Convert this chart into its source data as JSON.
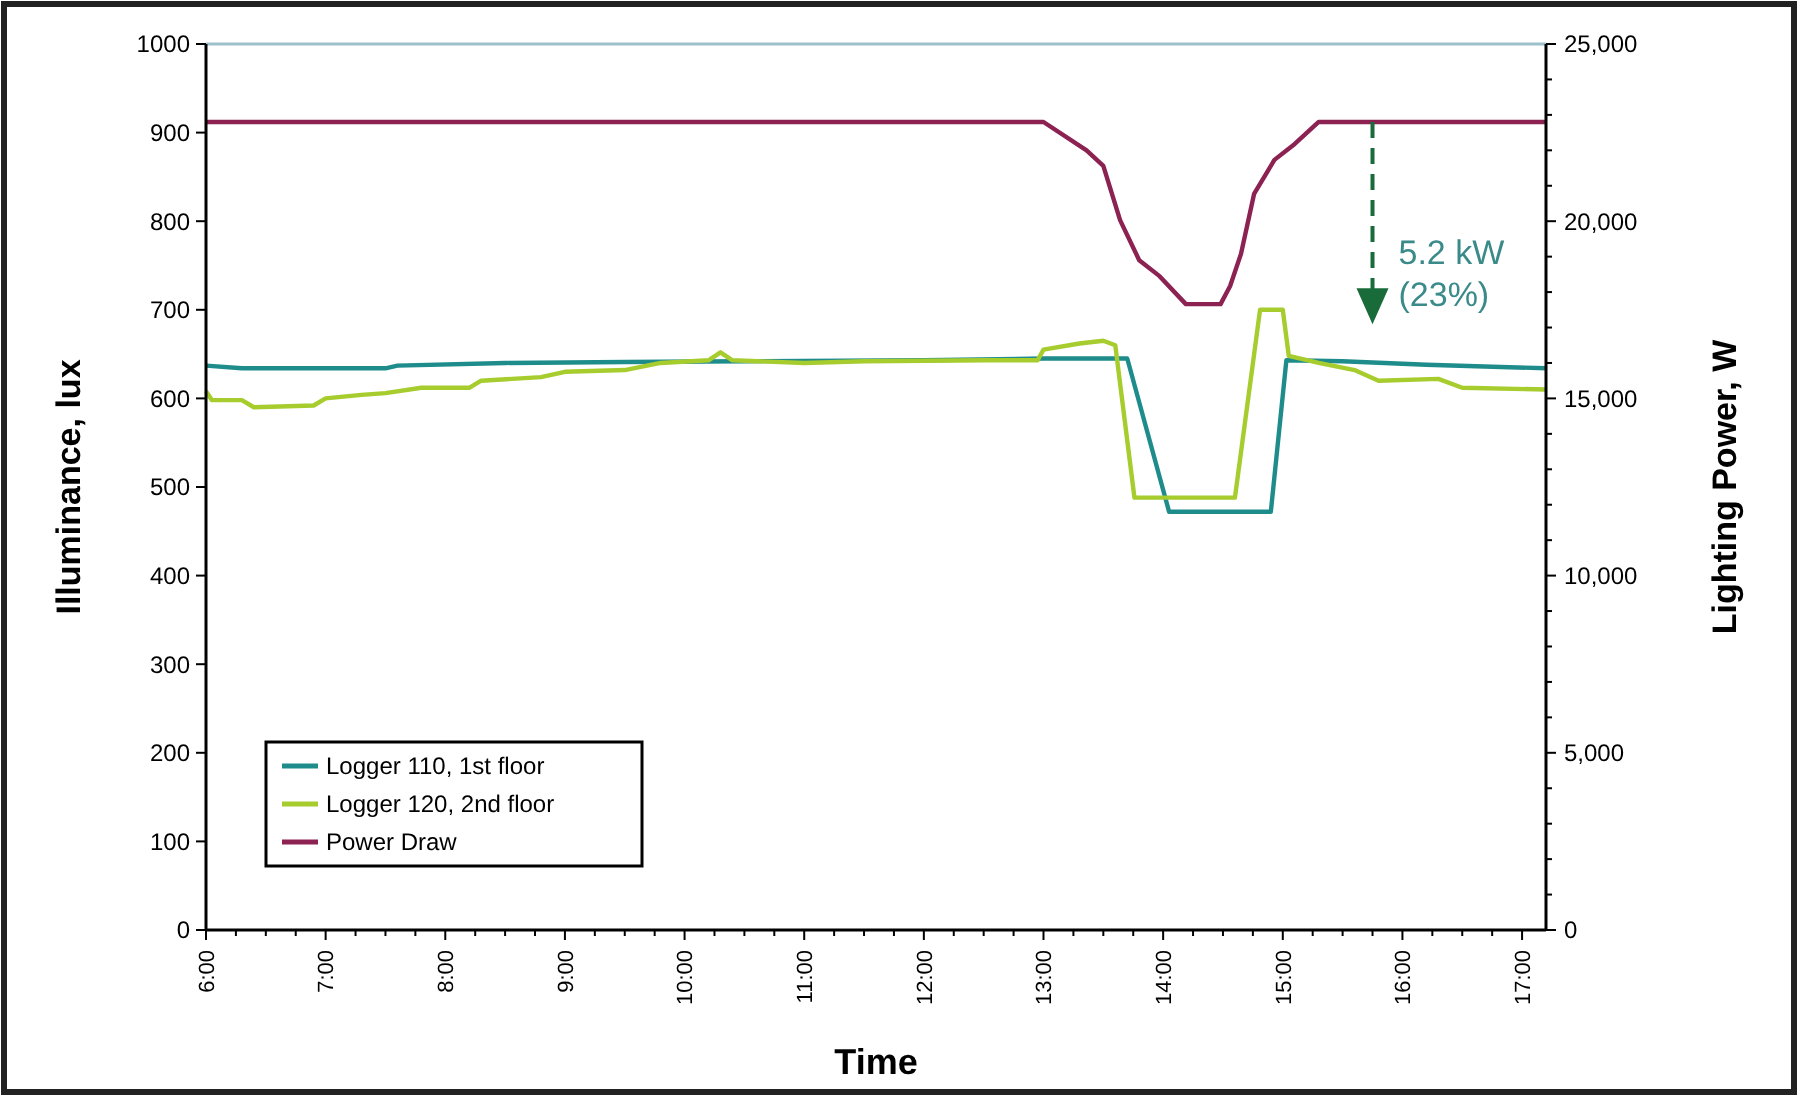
{
  "chart_data": {
    "type": "line",
    "xlabel": "Time",
    "ylabel": "Illuminance, lux",
    "y2label": "Lighting Power, W",
    "xlim": [
      6,
      17.2
    ],
    "xticks": [
      {
        "value": 6,
        "label": "6:00"
      },
      {
        "value": 6.25,
        "label": null
      },
      {
        "value": 6.5,
        "label": null
      },
      {
        "value": 6.75,
        "label": null
      },
      {
        "value": 7,
        "label": "7:00"
      },
      {
        "value": 7.25,
        "label": null
      },
      {
        "value": 7.5,
        "label": null
      },
      {
        "value": 7.75,
        "label": null
      },
      {
        "value": 8,
        "label": "8:00"
      },
      {
        "value": 8.25,
        "label": null
      },
      {
        "value": 8.5,
        "label": null
      },
      {
        "value": 8.75,
        "label": null
      },
      {
        "value": 9,
        "label": "9:00"
      },
      {
        "value": 9.25,
        "label": null
      },
      {
        "value": 9.5,
        "label": null
      },
      {
        "value": 9.75,
        "label": null
      },
      {
        "value": 10,
        "label": "10:00"
      },
      {
        "value": 10.25,
        "label": null
      },
      {
        "value": 10.5,
        "label": null
      },
      {
        "value": 10.75,
        "label": null
      },
      {
        "value": 11,
        "label": "11:00"
      },
      {
        "value": 11.25,
        "label": null
      },
      {
        "value": 11.5,
        "label": null
      },
      {
        "value": 11.75,
        "label": null
      },
      {
        "value": 12,
        "label": "12:00"
      },
      {
        "value": 12.25,
        "label": null
      },
      {
        "value": 12.5,
        "label": null
      },
      {
        "value": 12.75,
        "label": null
      },
      {
        "value": 13,
        "label": "13:00"
      },
      {
        "value": 13.25,
        "label": null
      },
      {
        "value": 13.5,
        "label": null
      },
      {
        "value": 13.75,
        "label": null
      },
      {
        "value": 14,
        "label": "14:00"
      },
      {
        "value": 14.25,
        "label": null
      },
      {
        "value": 14.5,
        "label": null
      },
      {
        "value": 14.75,
        "label": null
      },
      {
        "value": 15,
        "label": "15:00"
      },
      {
        "value": 15.25,
        "label": null
      },
      {
        "value": 15.5,
        "label": null
      },
      {
        "value": 15.75,
        "label": null
      },
      {
        "value": 16,
        "label": "16:00"
      },
      {
        "value": 16.25,
        "label": null
      },
      {
        "value": 16.5,
        "label": null
      },
      {
        "value": 16.75,
        "label": null
      },
      {
        "value": 17,
        "label": "17:00"
      }
    ],
    "ylim": [
      0,
      1000
    ],
    "yticks": [
      0,
      100,
      200,
      300,
      400,
      500,
      600,
      700,
      800,
      900,
      1000
    ],
    "y2lim": [
      0,
      25000
    ],
    "y2ticks": [
      {
        "value": 0,
        "label": "0"
      },
      {
        "value": 1000,
        "label": null
      },
      {
        "value": 2000,
        "label": null
      },
      {
        "value": 3000,
        "label": null
      },
      {
        "value": 4000,
        "label": null
      },
      {
        "value": 5000,
        "label": "5,000"
      },
      {
        "value": 6000,
        "label": null
      },
      {
        "value": 7000,
        "label": null
      },
      {
        "value": 8000,
        "label": null
      },
      {
        "value": 9000,
        "label": null
      },
      {
        "value": 10000,
        "label": "10,000"
      },
      {
        "value": 11000,
        "label": null
      },
      {
        "value": 12000,
        "label": null
      },
      {
        "value": 13000,
        "label": null
      },
      {
        "value": 14000,
        "label": null
      },
      {
        "value": 15000,
        "label": "15,000"
      },
      {
        "value": 16000,
        "label": null
      },
      {
        "value": 17000,
        "label": null
      },
      {
        "value": 18000,
        "label": null
      },
      {
        "value": 19000,
        "label": null
      },
      {
        "value": 20000,
        "label": "20,000"
      },
      {
        "value": 21000,
        "label": null
      },
      {
        "value": 22000,
        "label": null
      },
      {
        "value": 23000,
        "label": null
      },
      {
        "value": 24000,
        "label": null
      },
      {
        "value": 25000,
        "label": "25,000"
      }
    ],
    "legend": "bottom left",
    "grid": false,
    "marker": "none",
    "line_style": "solid",
    "annotations": [
      {
        "text": "5.2 kW",
        "x": 15.75,
        "y": 912
      },
      "(23%)"
    ],
    "series": [
      {
        "name": "Logger 110, 1st floor",
        "color": "#1f8c8c",
        "x": [
          6,
          6.3,
          7.5,
          7.6,
          8.5,
          9.5,
          10.5,
          12,
          13,
          13.7,
          14.05,
          14.9,
          15.03,
          15.5,
          16.2,
          17.2
        ],
        "values": [
          637,
          634,
          634,
          637,
          640,
          641,
          642,
          643,
          645,
          645,
          472,
          472,
          643,
          642,
          638,
          634
        ]
      },
      {
        "name": "Logger 120, 2nd floor",
        "color": "#a6cc2e",
        "x": [
          6,
          6.05,
          6.3,
          6.4,
          6.9,
          7.0,
          7.3,
          7.5,
          7.8,
          8.2,
          8.3,
          8.8,
          9.0,
          9.5,
          9.8,
          10.2,
          10.3,
          10.4,
          11,
          11.5,
          12.5,
          12.95,
          13.0,
          13.3,
          13.5,
          13.6,
          13.76,
          14.6,
          14.81,
          15.0,
          15.05,
          15.3,
          15.6,
          15.8,
          16.3,
          16.5,
          17.2
        ],
        "values": [
          608,
          598,
          598,
          590,
          592,
          600,
          604,
          606,
          612,
          612,
          620,
          624,
          630,
          632,
          640,
          643,
          652,
          643,
          640,
          642,
          643,
          643,
          655,
          662,
          665,
          660,
          488,
          488,
          700,
          700,
          648,
          640,
          632,
          620,
          622,
          612,
          610
        ]
      },
      {
        "name": "Power Draw",
        "color": "#8b2252",
        "axis": "y2",
        "x": [
          6,
          13,
          13.36,
          13.5,
          13.64,
          13.8,
          13.97,
          14.19,
          14.48,
          14.56,
          14.65,
          14.76,
          14.93,
          15.1,
          15.3,
          17.2
        ],
        "values": [
          22800,
          22800,
          22000,
          21560,
          20030,
          18900,
          18450,
          17660,
          17660,
          18170,
          19070,
          20770,
          21730,
          22180,
          22800,
          22800
        ]
      }
    ]
  }
}
